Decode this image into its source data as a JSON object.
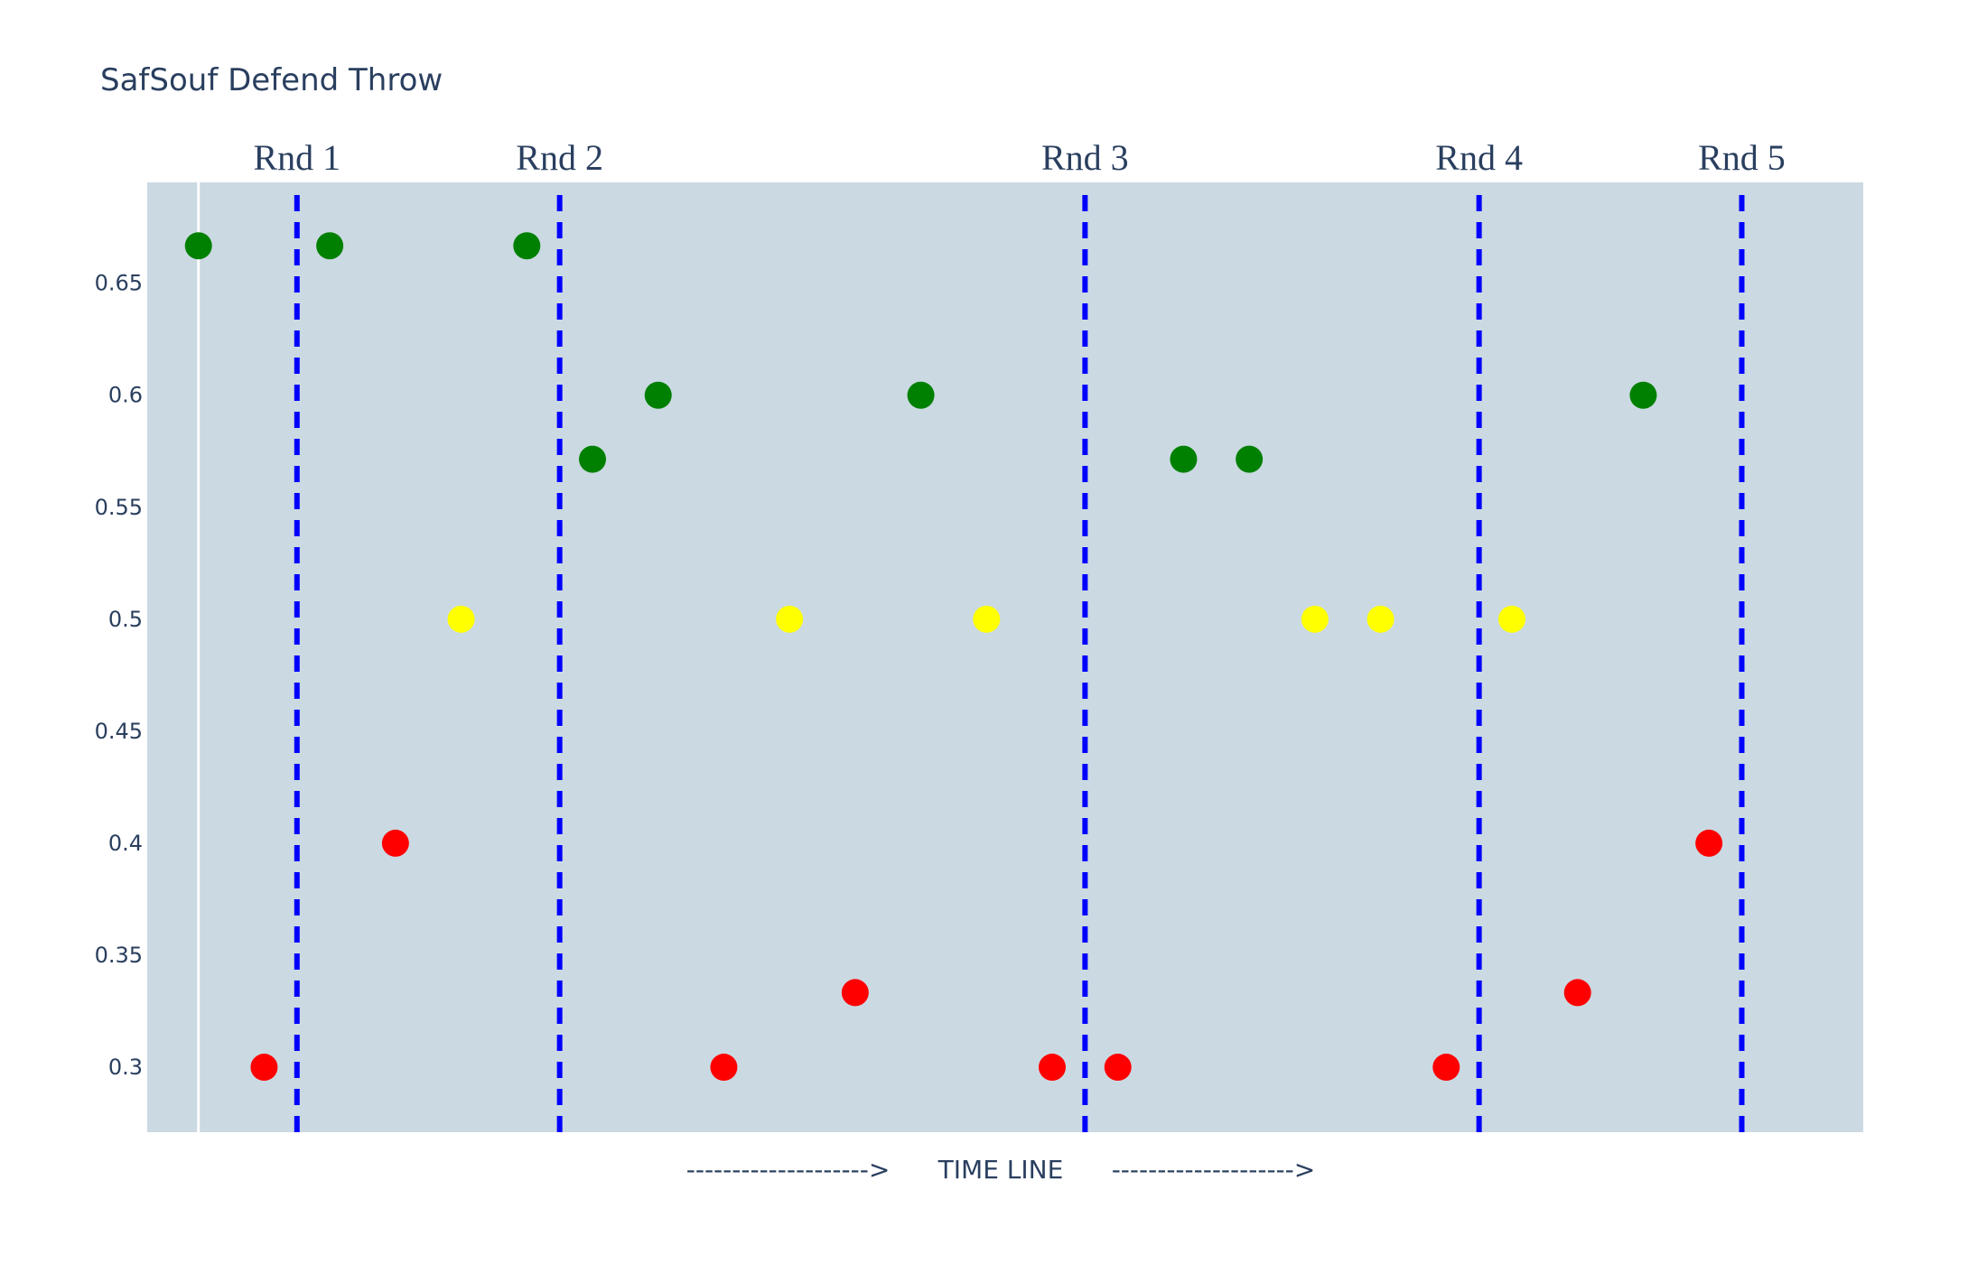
{
  "chart_data": {
    "type": "scatter",
    "title": "SafSouf Defend Throw",
    "xlabel": "-------------------->      TIME LINE      -------------------->",
    "ylabel": "",
    "ylim": [
      0.271,
      0.695
    ],
    "xlim": [
      -0.78,
      25.35
    ],
    "yticks": [
      0.3,
      0.35,
      0.4,
      0.45,
      0.5,
      0.55,
      0.6,
      0.65
    ],
    "ytick_labels": [
      "0.3",
      "0.35",
      "0.4",
      "0.45",
      "0.5",
      "0.55",
      "0.6",
      "0.65"
    ],
    "grid": false,
    "zero_line_x": 0,
    "colors": {
      "background": "#cbd9e2",
      "win": "#008000",
      "neutral": "#ffff00",
      "loss": "#ff0000",
      "round_line": "#0000ff",
      "zero_line": "#ffffff"
    },
    "rounds": [
      {
        "label": "Rnd 1",
        "x": 1.5
      },
      {
        "label": "Rnd 2",
        "x": 5.5
      },
      {
        "label": "Rnd 3",
        "x": 13.5
      },
      {
        "label": "Rnd 4",
        "x": 19.5
      },
      {
        "label": "Rnd 5",
        "x": 23.5
      }
    ],
    "points": [
      {
        "x": 0,
        "y": 0.6667,
        "color": "#008000"
      },
      {
        "x": 1,
        "y": 0.3,
        "color": "#ff0000"
      },
      {
        "x": 2,
        "y": 0.6667,
        "color": "#008000"
      },
      {
        "x": 3,
        "y": 0.4,
        "color": "#ff0000"
      },
      {
        "x": 4,
        "y": 0.5,
        "color": "#ffff00"
      },
      {
        "x": 5,
        "y": 0.6667,
        "color": "#008000"
      },
      {
        "x": 6,
        "y": 0.5714,
        "color": "#008000"
      },
      {
        "x": 7,
        "y": 0.6,
        "color": "#008000"
      },
      {
        "x": 8,
        "y": 0.3,
        "color": "#ff0000"
      },
      {
        "x": 9,
        "y": 0.5,
        "color": "#ffff00"
      },
      {
        "x": 10,
        "y": 0.3333,
        "color": "#ff0000"
      },
      {
        "x": 11,
        "y": 0.6,
        "color": "#008000"
      },
      {
        "x": 12,
        "y": 0.5,
        "color": "#ffff00"
      },
      {
        "x": 13,
        "y": 0.3,
        "color": "#ff0000"
      },
      {
        "x": 14,
        "y": 0.3,
        "color": "#ff0000"
      },
      {
        "x": 15,
        "y": 0.5714,
        "color": "#008000"
      },
      {
        "x": 16,
        "y": 0.5714,
        "color": "#008000"
      },
      {
        "x": 17,
        "y": 0.5,
        "color": "#ffff00"
      },
      {
        "x": 18,
        "y": 0.5,
        "color": "#ffff00"
      },
      {
        "x": 19,
        "y": 0.3,
        "color": "#ff0000"
      },
      {
        "x": 20,
        "y": 0.5,
        "color": "#ffff00"
      },
      {
        "x": 21,
        "y": 0.3333,
        "color": "#ff0000"
      },
      {
        "x": 22,
        "y": 0.6,
        "color": "#008000"
      },
      {
        "x": 23,
        "y": 0.4,
        "color": "#ff0000"
      }
    ]
  }
}
